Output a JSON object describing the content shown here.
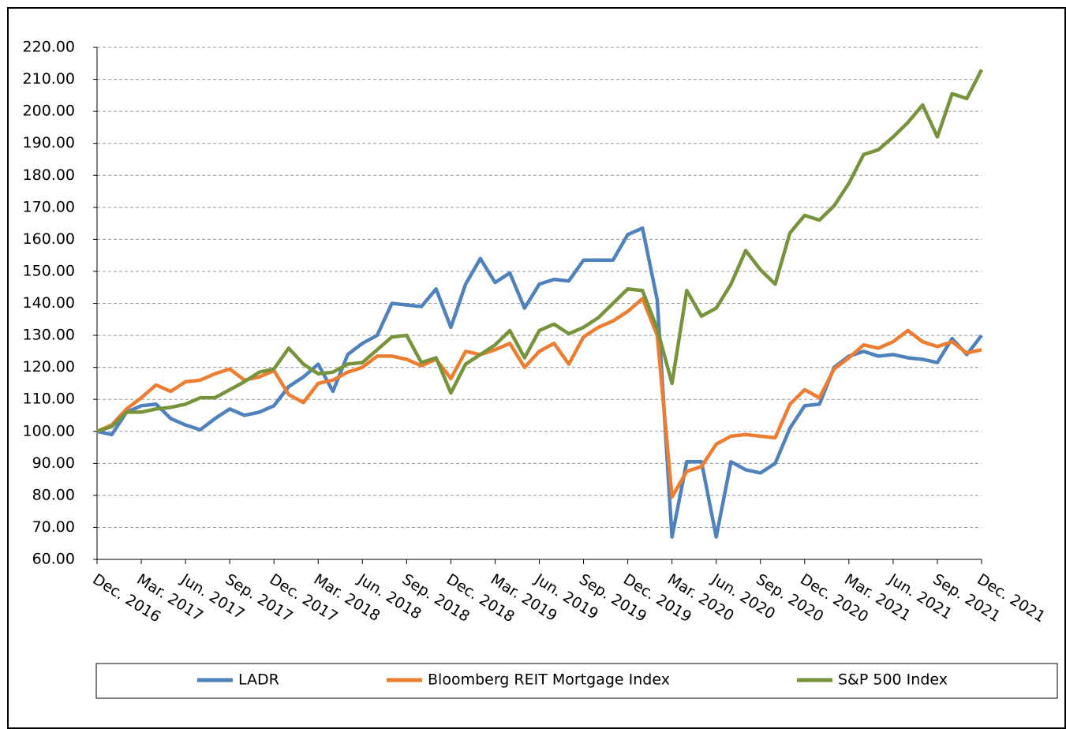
{
  "chart_data": {
    "type": "line",
    "categories": [
      "Dec. 2016",
      null,
      null,
      "Mar. 2017",
      null,
      null,
      "Jun. 2017",
      null,
      null,
      "Sep. 2017",
      null,
      null,
      "Dec. 2017",
      null,
      null,
      "Mar. 2018",
      null,
      null,
      "Jun. 2018",
      null,
      null,
      "Sep. 2018",
      null,
      null,
      "Dec. 2018",
      null,
      null,
      "Mar. 2019",
      null,
      null,
      "Jun. 2019",
      null,
      null,
      "Sep. 2019",
      null,
      null,
      "Dec. 2019",
      null,
      null,
      "Mar. 2020",
      null,
      null,
      "Jun. 2020",
      null,
      null,
      "Sep. 2020",
      null,
      null,
      "Dec. 2020",
      null,
      null,
      "Mar. 2021",
      null,
      null,
      "Jun. 2021",
      null,
      null,
      "Sep. 2021",
      null,
      null,
      "Dec. 2021"
    ],
    "series": [
      {
        "name": "LADR",
        "color": "#4f81bd",
        "values": [
          100,
          99,
          106,
          108,
          108.5,
          104,
          102,
          100.5,
          104,
          107,
          105,
          106,
          108,
          114,
          117,
          121,
          112.5,
          124,
          127.5,
          130,
          140,
          139.5,
          139,
          144.5,
          132.5,
          146,
          154,
          146.5,
          149.5,
          138.5,
          146,
          147.5,
          147,
          153.5,
          153.5,
          153.5,
          161.5,
          163.5,
          141,
          67,
          90.5,
          90.5,
          67,
          90.5,
          88,
          87,
          90,
          101,
          108,
          108.5,
          120,
          123.5,
          125,
          123.5,
          124,
          123,
          122.5,
          121.5,
          129,
          124,
          130
        ]
      },
      {
        "name": "Bloomberg REIT Mortgage Index",
        "color": "#ed7d31",
        "values": [
          100,
          102,
          107,
          110.5,
          114.5,
          112.5,
          115.5,
          116,
          118,
          119.5,
          116,
          117,
          119,
          111.5,
          109,
          115,
          116,
          118.5,
          120,
          123.5,
          123.5,
          122.5,
          120.5,
          122.5,
          116.5,
          125,
          124,
          125.5,
          127.5,
          120,
          125,
          127.5,
          121,
          129.5,
          132.5,
          134.5,
          137.5,
          141.5,
          130,
          79.5,
          87.5,
          89,
          96,
          98.5,
          99,
          98.5,
          98,
          108.5,
          113,
          110.5,
          119.5,
          123,
          127,
          126,
          128,
          131.5,
          128,
          126.5,
          128,
          124.5,
          125.5
        ]
      },
      {
        "name": "S&P 500 Index",
        "color": "#77933c",
        "values": [
          100,
          101.5,
          106,
          106,
          107,
          107.5,
          108.5,
          110.5,
          110.5,
          113,
          115.5,
          118.5,
          119.5,
          126,
          121,
          118,
          118.5,
          121,
          121.5,
          125.5,
          129.5,
          130,
          121.5,
          123,
          112,
          121,
          124,
          127,
          131.5,
          123,
          131.5,
          133.5,
          130.5,
          132.5,
          135.5,
          140,
          144.5,
          144,
          132,
          115,
          144,
          136,
          138.5,
          146,
          156.5,
          150.5,
          146,
          162,
          167.5,
          166,
          170.5,
          177.5,
          186.5,
          188,
          192,
          196.5,
          202,
          192,
          205.5,
          204,
          213
        ]
      }
    ],
    "ylim": [
      60,
      220
    ],
    "yticks": [
      {
        "value": 60,
        "label": "60.00"
      },
      {
        "value": 70,
        "label": "70.00"
      },
      {
        "value": 80,
        "label": "80.00"
      },
      {
        "value": 90,
        "label": "90.00"
      },
      {
        "value": 100,
        "label": "100.00"
      },
      {
        "value": 110,
        "label": "110.00"
      },
      {
        "value": 120,
        "label": "120.00"
      },
      {
        "value": 130,
        "label": "130.00"
      },
      {
        "value": 140,
        "label": "140.00"
      },
      {
        "value": 150,
        "label": "150.00"
      },
      {
        "value": 160,
        "label": "160.00"
      },
      {
        "value": 170,
        "label": "170.00"
      },
      {
        "value": 180,
        "label": "180.00"
      },
      {
        "value": 190,
        "label": "190.00"
      },
      {
        "value": 200,
        "label": "200.00"
      },
      {
        "value": 210,
        "label": "210.00"
      },
      {
        "value": 220,
        "label": "220.00"
      }
    ],
    "grid": true,
    "legend": "bottom"
  }
}
